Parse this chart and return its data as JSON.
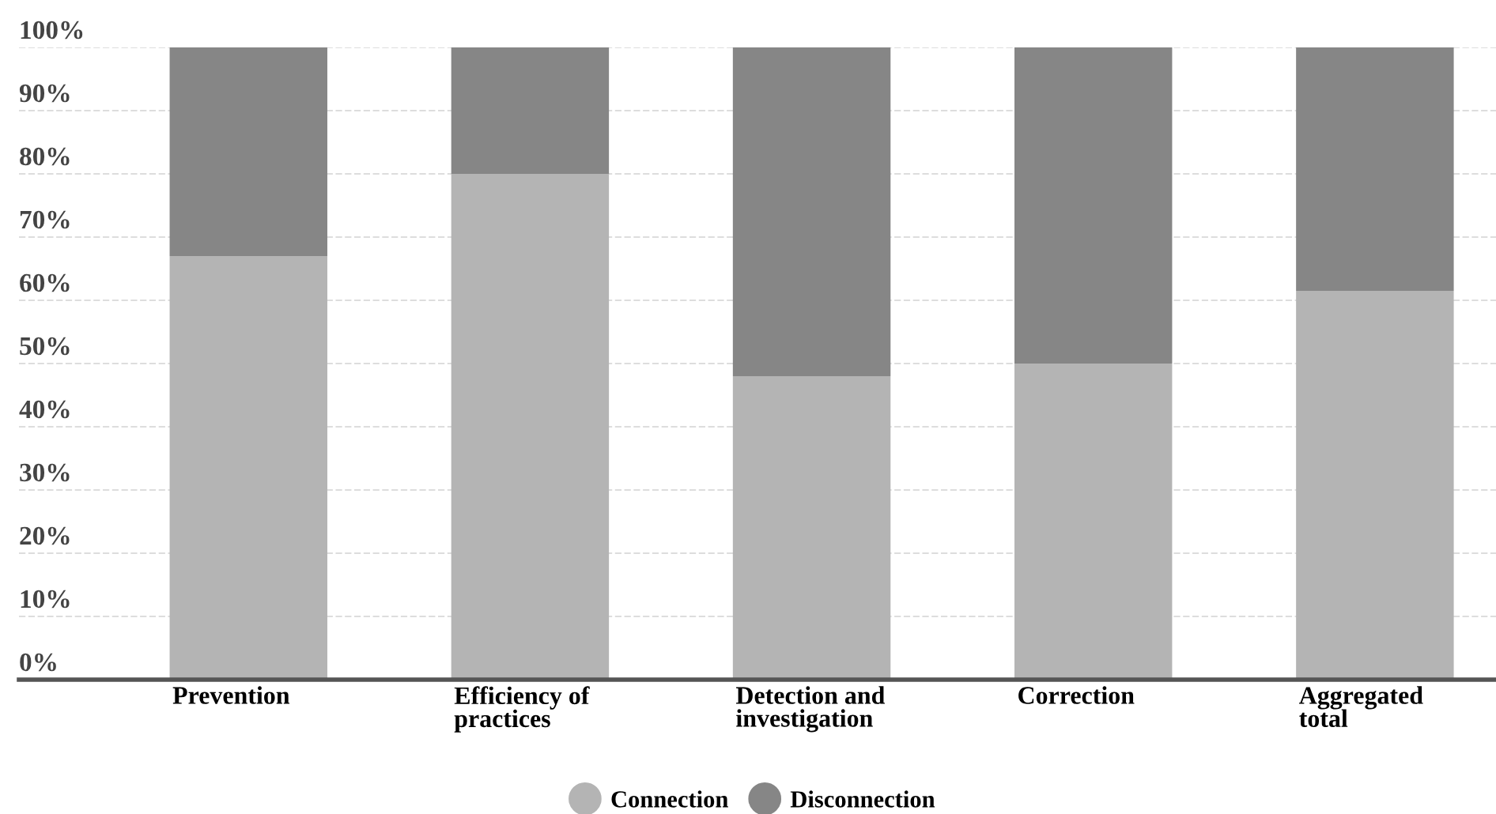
{
  "chart_data": {
    "type": "bar",
    "stacked": true,
    "categories": [
      "Prevention",
      "Efficiency of\npractices",
      "Detection and\ninvestigation",
      "Correction",
      "Aggregated\ntotal"
    ],
    "series": [
      {
        "name": "Connection",
        "color": "#b4b4b4",
        "values": [
          67,
          80,
          48,
          50,
          61.5
        ]
      },
      {
        "name": "Disconnection",
        "color": "#868686",
        "values": [
          33,
          20,
          52,
          50,
          38.5
        ]
      }
    ],
    "ylim": [
      0,
      100
    ],
    "yticks": [
      {
        "value": 0,
        "label": "0%"
      },
      {
        "value": 10,
        "label": "10%"
      },
      {
        "value": 20,
        "label": "20%"
      },
      {
        "value": 30,
        "label": "30%"
      },
      {
        "value": 40,
        "label": "40%"
      },
      {
        "value": 50,
        "label": "50%"
      },
      {
        "value": 60,
        "label": "60%"
      },
      {
        "value": 70,
        "label": "70%"
      },
      {
        "value": 80,
        "label": "80%"
      },
      {
        "value": 90,
        "label": "90%"
      },
      {
        "value": 100,
        "label": "100%"
      }
    ],
    "grid": "y",
    "legend": "bottom"
  }
}
